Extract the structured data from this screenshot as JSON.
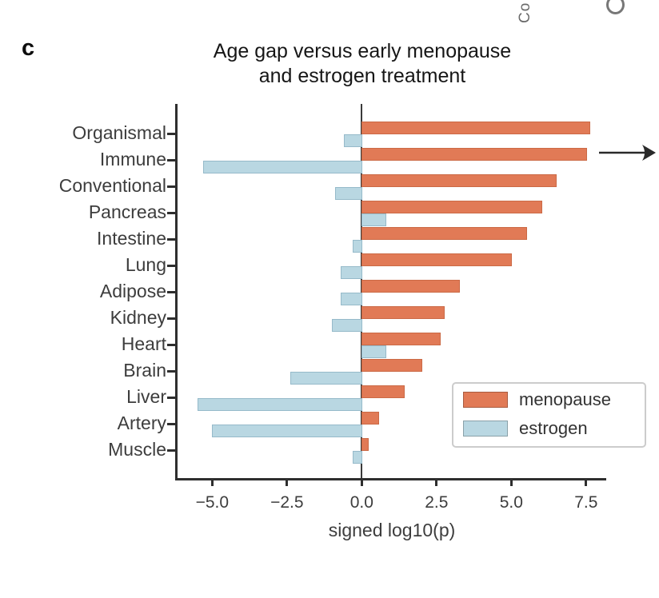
{
  "figure": {
    "panel_label": "c",
    "title_line1": "Age gap versus early menopause",
    "title_line2": "and estrogen treatment",
    "top_edge_fragment": "Co"
  },
  "chart_data": {
    "type": "bar",
    "orientation": "horizontal",
    "title": "Age gap versus early menopause and estrogen treatment",
    "xlabel": "signed log10(p)",
    "categories": [
      "Organismal",
      "Immune",
      "Conventional",
      "Pancreas",
      "Intestine",
      "Lung",
      "Adipose",
      "Kidney",
      "Heart",
      "Brain",
      "Liver",
      "Artery",
      "Muscle"
    ],
    "series": [
      {
        "name": "menopause",
        "color": "#e17a56",
        "values": [
          7.6,
          7.5,
          6.5,
          6.0,
          5.5,
          5.0,
          3.25,
          2.75,
          2.6,
          2.0,
          1.4,
          0.55,
          0.2
        ]
      },
      {
        "name": "estrogen",
        "color": "#b9d7e2",
        "values": [
          -0.6,
          -5.3,
          -0.9,
          0.8,
          -0.3,
          -0.7,
          -0.7,
          -1.0,
          0.8,
          -2.4,
          -5.5,
          -5.0,
          -0.3
        ]
      }
    ],
    "x_ticks": [
      -5.0,
      -2.5,
      0.0,
      2.5,
      5.0,
      7.5
    ],
    "x_tick_labels": [
      "−5.0",
      "−2.5",
      "0.0",
      "2.5",
      "5.0",
      "7.5"
    ],
    "xlim": [
      -6.1,
      8.2
    ],
    "grid": false,
    "legend": {
      "position": "lower right",
      "entries": [
        {
          "label": "menopause",
          "color": "#e17a56"
        },
        {
          "label": "estrogen",
          "color": "#b9d7e2"
        }
      ]
    },
    "annotations": [
      {
        "type": "arrow",
        "row": "Immune",
        "direction": "right"
      }
    ]
  },
  "colors": {
    "menopause": "#e17a56",
    "estrogen": "#b9d7e2",
    "axis": "#2e2e2e",
    "text": "#3d3d3d",
    "title": "#161616",
    "legend_border": "#cccccc"
  }
}
